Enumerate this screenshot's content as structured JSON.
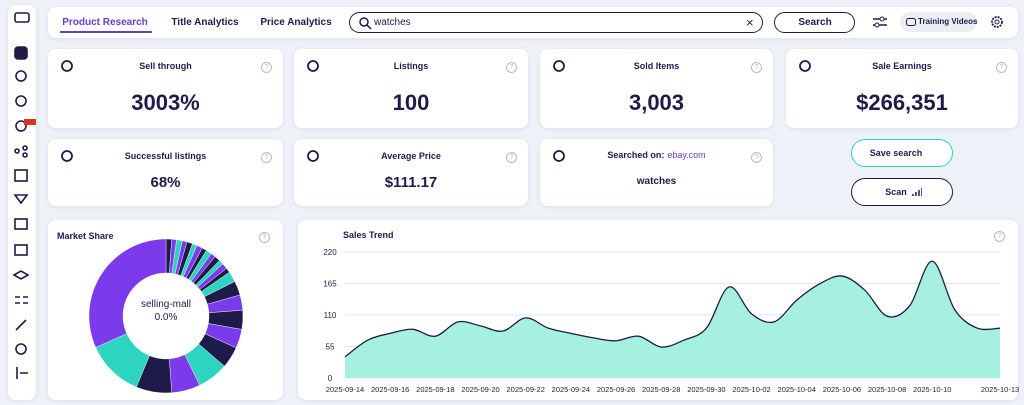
{
  "nav": {
    "tabs": [
      "Product Research",
      "Title Analytics",
      "Price Analytics"
    ],
    "search_query": "watches",
    "search_button": "Search",
    "training_videos": "Training Videos"
  },
  "cards": [
    {
      "title": "Sell through",
      "value": "3003%"
    },
    {
      "title": "Listings",
      "value": "100"
    },
    {
      "title": "Sold Items",
      "value": "3,003"
    },
    {
      "title": "Sale Earnings",
      "value": "$266,351"
    },
    {
      "title": "Successful listings",
      "value": "68%"
    },
    {
      "title": "Average Price",
      "value": "$111.17"
    },
    {
      "title": "Searched on:",
      "link": "ebay.com",
      "value": "watches"
    }
  ],
  "buttons": {
    "save": "Save search",
    "scan": "Scan"
  },
  "chart_data": [
    {
      "type": "pie",
      "title": "Market Share",
      "center_label": "selling-mall",
      "center_value": "0.0%",
      "values": [
        1.2,
        1,
        1.2,
        1,
        1.2,
        1,
        1.2,
        1,
        1.2,
        1,
        1.2,
        1,
        1.2,
        1,
        2.2,
        3,
        3.2,
        4,
        4,
        4.5,
        6.5,
        6,
        7.5,
        12,
        31.7
      ],
      "colors": [
        "#1e1b4b",
        "#7c3aed",
        "#2dd4bf",
        "#7c3aed",
        "#1e1b4b",
        "#2dd4bf",
        "#7c3aed",
        "#1e1b4b",
        "#2dd4bf",
        "#7c3aed",
        "#1e1b4b",
        "#2dd4bf",
        "#7c3aed",
        "#1e1b4b",
        "#2dd4bf",
        "#1e1b4b",
        "#7c3aed",
        "#1e1b4b",
        "#7c3aed",
        "#1e1b4b",
        "#2dd4bf",
        "#7c3aed",
        "#1e1b4b",
        "#2dd4bf",
        "#7c3aed"
      ]
    },
    {
      "type": "area",
      "title": "Sales Trend",
      "color": "#a5f0df",
      "line_color": "#1e1b4b",
      "grid": true,
      "x": [
        "2025-09-14",
        "2025-09-15",
        "2025-09-16",
        "2025-09-17",
        "2025-09-18",
        "2025-09-19",
        "2025-09-20",
        "2025-09-21",
        "2025-09-22",
        "2025-09-23",
        "2025-09-24",
        "2025-09-25",
        "2025-09-26",
        "2025-09-27",
        "2025-09-28",
        "2025-09-29",
        "2025-09-30",
        "2025-10-01",
        "2025-10-02",
        "2025-10-03",
        "2025-10-04",
        "2025-10-05",
        "2025-10-06",
        "2025-10-07",
        "2025-10-08",
        "2025-10-09",
        "2025-10-10",
        "2025-10-11",
        "2025-10-12",
        "2025-10-13"
      ],
      "values": [
        37,
        66,
        78,
        85,
        73,
        98,
        91,
        82,
        105,
        87,
        78,
        70,
        65,
        73,
        54,
        66,
        87,
        159,
        112,
        98,
        136,
        164,
        178,
        154,
        108,
        126,
        204,
        119,
        87,
        87
      ],
      "xlim": [
        "2025-09-14",
        "2025-10-13"
      ],
      "xticks": [
        "2025-09-14",
        "2025-09-16",
        "2025-09-18",
        "2025-09-20",
        "2025-09-22",
        "2025-09-24",
        "2025-09-26",
        "2025-09-28",
        "2025-09-30",
        "2025-10-02",
        "2025-10-04",
        "2025-10-06",
        "2025-10-08",
        "2025-10-10",
        "2025-10-13"
      ],
      "ylim": [
        0,
        220
      ],
      "yticks": [
        0,
        55,
        110,
        165,
        220
      ]
    }
  ]
}
